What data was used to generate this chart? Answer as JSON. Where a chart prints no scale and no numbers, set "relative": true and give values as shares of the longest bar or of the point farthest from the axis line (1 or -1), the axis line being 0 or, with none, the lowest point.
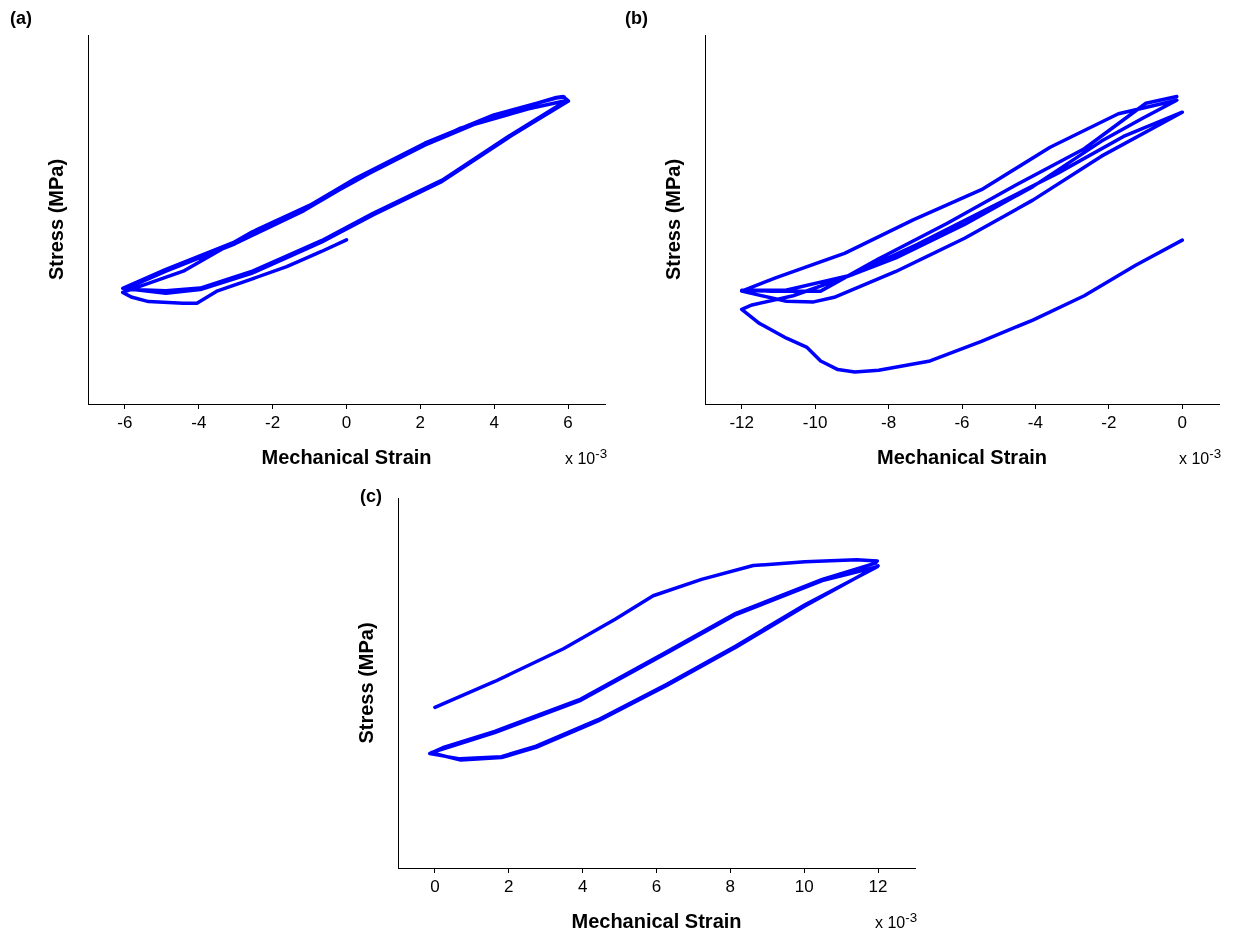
{
  "chart_data": [
    {
      "type": "line",
      "title": "(a)",
      "xlabel": "Mechanical Strain",
      "ylabel": "Stress (MPa)",
      "annotations": [
        "x 10$^{-3}$"
      ],
      "relative": true,
      "marker": "none",
      "line_style": "solid",
      "color": "#0000ff",
      "xlim": [
        -7,
        7
      ],
      "xticks": [
        -6,
        -4,
        -2,
        0,
        2,
        4,
        6
      ],
      "x": [
        0,
        -0.68,
        -1.62,
        -2.55,
        -3.49,
        -4.05,
        -4.42,
        -5.36,
        -5.83,
        -6.06,
        -4.42,
        -2.55,
        -0.68,
        1.19,
        3.06,
        4.93,
        5.96,
        4.46,
        2.59,
        0.72,
        -0.68,
        -2.55,
        -3.96,
        -4.89,
        -6.02,
        -4.89,
        -3.02,
        -1.15,
        0.25,
        2.12,
        3.99,
        5.68,
        5.87,
        6.01,
        4.46,
        2.59,
        0.72,
        -0.68,
        -2.55,
        -3.96,
        -4.89,
        -6.06,
        -4.89,
        -3.02,
        -1.15,
        0.25,
        2.12,
        3.99,
        5.68,
        5.9
      ],
      "values": [
        0.534,
        0.496,
        0.447,
        0.407,
        0.368,
        0.328,
        0.328,
        0.333,
        0.348,
        0.363,
        0.432,
        0.56,
        0.664,
        0.788,
        0.896,
        0.96,
        0.987,
        0.876,
        0.728,
        0.62,
        0.531,
        0.432,
        0.377,
        0.368,
        0.373,
        0.432,
        0.521,
        0.629,
        0.728,
        0.842,
        0.936,
        0.997,
        1.0,
        0.985,
        0.872,
        0.724,
        0.615,
        0.526,
        0.426,
        0.372,
        0.36,
        0.376,
        0.438,
        0.527,
        0.635,
        0.734,
        0.848,
        0.94,
        0.995,
        0.998
      ]
    },
    {
      "type": "line",
      "title": "(b)",
      "xlabel": "Mechanical Strain",
      "ylabel": "Stress (MPa)",
      "annotations": [
        "x 10$^{-3}$"
      ],
      "relative": true,
      "marker": "none",
      "line_style": "solid",
      "color": "#0000ff",
      "xlim": [
        -13,
        1
      ],
      "xticks": [
        -12,
        -10,
        -8,
        -6,
        -4,
        -2,
        0
      ],
      "x": [
        0,
        -1.27,
        -2.67,
        -4.07,
        -5.47,
        -6.87,
        -8.27,
        -8.92,
        -9.38,
        -9.85,
        -10.22,
        -10.78,
        -11.53,
        -12,
        -11.72,
        -10.6,
        -9.2,
        -7.8,
        -5.93,
        -4.07,
        -2.2,
        -1.08,
        -0.15,
        -1.74,
        -3.6,
        -5.47,
        -7.33,
        -9.2,
        -11.06,
        -12,
        -10.78,
        -10.04,
        -9.48,
        -7.8,
        -5.93,
        -4.07,
        -2.2,
        0,
        -1.6,
        -3.4,
        -5.3,
        -7.2,
        -9.0,
        -10.8,
        -12,
        -11.2,
        -9.85,
        -8.27,
        -6.4,
        -4.53,
        -2.67,
        -0.99,
        -0.15
      ],
      "values": [
        0.533,
        0.451,
        0.352,
        0.273,
        0.204,
        0.14,
        0.11,
        0.104,
        0.112,
        0.14,
        0.184,
        0.214,
        0.263,
        0.308,
        0.322,
        0.352,
        0.411,
        0.475,
        0.584,
        0.707,
        0.855,
        0.929,
        0.988,
        0.944,
        0.835,
        0.697,
        0.599,
        0.49,
        0.411,
        0.367,
        0.334,
        0.332,
        0.347,
        0.431,
        0.539,
        0.663,
        0.806,
        0.949,
        0.87,
        0.75,
        0.635,
        0.52,
        0.42,
        0.37,
        0.37,
        0.367,
        0.367,
        0.472,
        0.588,
        0.712,
        0.83,
        0.978,
        1.0
      ]
    },
    {
      "type": "line",
      "title": "(c)",
      "xlabel": "Mechanical Strain",
      "ylabel": "Stress (MPa)",
      "annotations": [
        "x 10$^{-3}$"
      ],
      "relative": true,
      "marker": "none",
      "line_style": "solid",
      "color": "#0000ff",
      "xlim": [
        -1,
        13
      ],
      "xticks": [
        0,
        2,
        4,
        6,
        8,
        10,
        12
      ],
      "x": [
        0,
        1.62,
        3.48,
        4.88,
        5.91,
        7.22,
        8.62,
        10.02,
        11.42,
        11.98,
        11.93,
        10.49,
        8.15,
        6.28,
        3.95,
        1.62,
        0.21,
        -0.14,
        0.68,
        1.8,
        2.74,
        4.42,
        6.28,
        8.15,
        10.02,
        11.98,
        10.49,
        8.15,
        6.28,
        3.95,
        1.62,
        0.21,
        -0.1,
        0.7,
        1.8,
        2.74,
        4.42,
        6.28,
        8.15,
        10.02,
        12.0
      ],
      "values": [
        0.521,
        0.605,
        0.711,
        0.807,
        0.883,
        0.936,
        0.981,
        0.993,
        1.0,
        0.996,
        0.989,
        0.936,
        0.826,
        0.701,
        0.548,
        0.443,
        0.39,
        0.371,
        0.354,
        0.361,
        0.395,
        0.481,
        0.596,
        0.72,
        0.854,
        0.977,
        0.932,
        0.822,
        0.697,
        0.544,
        0.439,
        0.386,
        0.374,
        0.35,
        0.358,
        0.391,
        0.477,
        0.592,
        0.716,
        0.85,
        0.98
      ]
    }
  ]
}
